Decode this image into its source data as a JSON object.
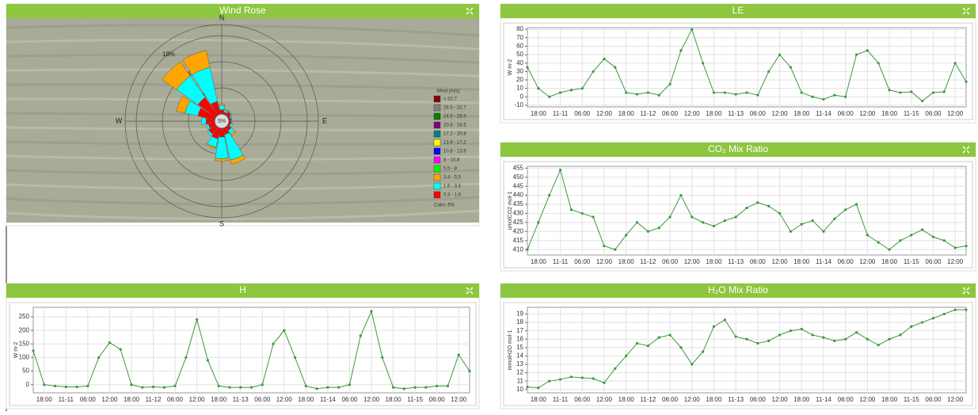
{
  "chart_data": [
    {
      "type": "wind_rose",
      "title": "Wind Rose",
      "legend_title": "Wind (m/s)",
      "categories": [
        "N",
        null,
        null,
        null,
        "E",
        null,
        null,
        null,
        "S",
        null,
        null,
        null,
        "W",
        null,
        null,
        null
      ],
      "calm": {
        "value": 5,
        "label": "5%"
      },
      "calm_note": "Calm: 5%",
      "rlim": [
        0,
        18
      ],
      "rticks": [
        {
          "value": 6,
          "label": "6%"
        },
        {
          "value": 12,
          "label": "12%"
        },
        {
          "value": 18,
          "label": "18%"
        }
      ],
      "series": [
        {
          "name": "> 32.7",
          "color": "#8b0000",
          "values": [
            0,
            0,
            0,
            0,
            0,
            0,
            0,
            0,
            0,
            0,
            0,
            0,
            0,
            0,
            0,
            0
          ]
        },
        {
          "name": "28.5 - 32.7",
          "color": "#808080",
          "values": [
            0,
            0,
            0,
            0,
            0,
            0,
            0,
            0,
            0,
            0,
            0,
            0,
            0,
            0,
            0,
            0
          ]
        },
        {
          "name": "24.5 - 28.5",
          "color": "#008000",
          "values": [
            0,
            0,
            0,
            0,
            0,
            0,
            0,
            0,
            0,
            0,
            0,
            0,
            0,
            0,
            0,
            0
          ]
        },
        {
          "name": "20.8 - 24.5",
          "color": "#800080",
          "values": [
            0,
            0,
            0,
            0,
            0,
            0,
            0,
            0,
            0,
            0,
            0,
            0,
            0,
            0,
            0,
            0
          ]
        },
        {
          "name": "17.2 - 20.8",
          "color": "#008080",
          "values": [
            0,
            0,
            0,
            0,
            0,
            0,
            0,
            0,
            0,
            0,
            0,
            0,
            0,
            0,
            0,
            0
          ]
        },
        {
          "name": "13.9 - 17.2",
          "color": "#ffff00",
          "values": [
            0,
            0,
            0,
            0,
            0,
            0,
            0,
            0,
            0,
            0,
            0,
            0,
            0,
            0,
            0,
            0
          ]
        },
        {
          "name": "10.8 - 13.9",
          "color": "#0000ff",
          "values": [
            0,
            0,
            0,
            0,
            0,
            0,
            0,
            0,
            0,
            0,
            0,
            0,
            0,
            0,
            0,
            0
          ]
        },
        {
          "name": "8 - 10.8",
          "color": "#ff00ff",
          "values": [
            0,
            0,
            0,
            0,
            0,
            0,
            0,
            0,
            0,
            0,
            0,
            0,
            0,
            0,
            0,
            0
          ]
        },
        {
          "name": "5.5 - 8",
          "color": "#00ff00",
          "values": [
            0,
            0,
            0,
            0,
            0,
            0,
            0,
            0,
            0,
            0,
            0,
            0,
            0,
            0,
            0,
            0
          ]
        },
        {
          "name": "3.4 - 5.5",
          "color": "#ffa500",
          "values": [
            0.3,
            0.2,
            0,
            0,
            0,
            0,
            0.5,
            1,
            0.5,
            0.3,
            0,
            0,
            0,
            2,
            4,
            4
          ]
        },
        {
          "name": "1.6 - 3.4",
          "color": "#00ffff",
          "values": [
            1,
            0.5,
            0.3,
            0.3,
            0.2,
            0.5,
            1,
            6,
            5,
            2,
            0.5,
            0.5,
            1,
            3,
            6,
            8
          ]
        },
        {
          "name": "0.3 - 1.6",
          "color": "#ff0000",
          "values": [
            1,
            0.5,
            1,
            0.5,
            0.5,
            0.5,
            1,
            1.5,
            2,
            2.5,
            2,
            1.5,
            2,
            4,
            5,
            3
          ]
        }
      ]
    },
    {
      "type": "line",
      "title": "LE",
      "ylabel": "W m-2",
      "color": "#3a9a3a",
      "categories": [
        null,
        "18:00",
        null,
        "11-11",
        null,
        "06:00",
        null,
        "12:00",
        null,
        "18:00",
        null,
        "11-12",
        null,
        "06:00",
        null,
        "12:00",
        null,
        "18:00",
        null,
        "11-13",
        null,
        "06:00",
        null,
        "12:00",
        null,
        "18:00",
        null,
        "11-14",
        null,
        "06:00",
        null,
        "12:00",
        null,
        "18:00",
        null,
        "11-15",
        null,
        "06:00",
        null,
        "12:00",
        null
      ],
      "values": [
        35,
        10,
        0,
        5,
        8,
        10,
        30,
        45,
        35,
        5,
        3,
        5,
        2,
        15,
        55,
        80,
        40,
        5,
        5,
        3,
        5,
        2,
        30,
        50,
        35,
        5,
        0,
        -3,
        2,
        0,
        50,
        55,
        40,
        8,
        5,
        6,
        -5,
        5,
        6,
        40,
        18
      ],
      "ylim": [
        -12,
        82
      ],
      "yticks": [
        -10,
        0,
        10,
        20,
        30,
        40,
        50,
        60,
        70,
        80
      ],
      "grid": true
    },
    {
      "type": "line",
      "title": "CO₂ Mix Ratio",
      "ylabel": "umolCO2 mol-1",
      "color": "#3a9a3a",
      "categories": [
        null,
        "18:00",
        null,
        "11-11",
        null,
        "06:00",
        null,
        "12:00",
        null,
        "18:00",
        null,
        "11-12",
        null,
        "06:00",
        null,
        "12:00",
        null,
        "18:00",
        null,
        "11-13",
        null,
        "06:00",
        null,
        "12:00",
        null,
        "18:00",
        null,
        "11-14",
        null,
        "06:00",
        null,
        "12:00",
        null,
        "18:00",
        null,
        "11-15",
        null,
        "06:00",
        null,
        "12:00",
        null
      ],
      "values": [
        410,
        425,
        440,
        454,
        432,
        430,
        428,
        412,
        410,
        418,
        425,
        420,
        422,
        428,
        440,
        428,
        425,
        423,
        426,
        428,
        433,
        436,
        434,
        430,
        420,
        424,
        426,
        420,
        427,
        432,
        435,
        418,
        414,
        410,
        415,
        418,
        421,
        417,
        415,
        411,
        412
      ],
      "ylim": [
        407,
        456
      ],
      "yticks": [
        410,
        415,
        420,
        425,
        430,
        435,
        440,
        445,
        450,
        455
      ],
      "grid": true
    },
    {
      "type": "line",
      "title": "H",
      "ylabel": "W m-2",
      "color": "#3a9a3a",
      "categories": [
        null,
        "18:00",
        null,
        "11-11",
        null,
        "06:00",
        null,
        "12:00",
        null,
        "18:00",
        null,
        "11-12",
        null,
        "06:00",
        null,
        "12:00",
        null,
        "18:00",
        null,
        "11-13",
        null,
        "06:00",
        null,
        "12:00",
        null,
        "18:00",
        null,
        "11-14",
        null,
        "06:00",
        null,
        "12:00",
        null,
        "18:00",
        null,
        "11-15",
        null,
        "06:00",
        null,
        "12:00",
        null
      ],
      "values": [
        125,
        0,
        -5,
        -8,
        -8,
        -5,
        100,
        155,
        130,
        0,
        -10,
        -8,
        -10,
        -5,
        100,
        240,
        90,
        -5,
        -10,
        -10,
        -10,
        0,
        150,
        200,
        100,
        -5,
        -15,
        -10,
        -10,
        0,
        180,
        270,
        100,
        -10,
        -15,
        -10,
        -10,
        -5,
        -5,
        110,
        50
      ],
      "ylim": [
        -30,
        285
      ],
      "yticks": [
        0,
        50,
        100,
        150,
        200,
        250
      ],
      "grid": true
    },
    {
      "type": "line",
      "title": "H₂O Mix Ratio",
      "ylabel": "mmolH2O mol-1",
      "color": "#3a9a3a",
      "categories": [
        null,
        "18:00",
        null,
        "11-11",
        null,
        "06:00",
        null,
        "12:00",
        null,
        "18:00",
        null,
        "11-12",
        null,
        "06:00",
        null,
        "12:00",
        null,
        "18:00",
        null,
        "11-13",
        null,
        "06:00",
        null,
        "12:00",
        null,
        "18:00",
        null,
        "11-14",
        null,
        "06:00",
        null,
        "12:00",
        null,
        "18:00",
        null,
        "11-15",
        null,
        "06:00",
        null,
        "12:00",
        null
      ],
      "values": [
        10.3,
        10.2,
        11,
        11.2,
        11.5,
        11.4,
        11.3,
        10.8,
        12.5,
        14,
        15.5,
        15.2,
        16.2,
        16.5,
        15,
        13,
        14.5,
        17.5,
        18.3,
        16.3,
        16,
        15.5,
        15.8,
        16.5,
        17,
        17.2,
        16.5,
        16.2,
        15.8,
        16,
        16.8,
        16,
        15.3,
        16,
        16.5,
        17.5,
        18,
        18.5,
        19,
        19.5,
        19.5
      ],
      "ylim": [
        9.6,
        19.8
      ],
      "yticks": [
        10,
        11,
        12,
        13,
        14,
        15,
        16,
        17,
        18,
        19
      ],
      "grid": true
    }
  ]
}
